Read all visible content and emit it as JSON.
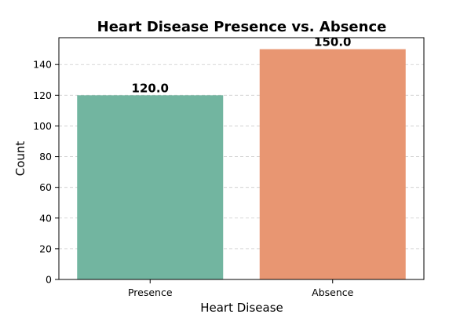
{
  "chart_data": {
    "type": "bar",
    "title": "Heart Disease Presence vs. Absence",
    "xlabel": "Heart Disease",
    "ylabel": "Count",
    "categories": [
      "Presence",
      "Absence"
    ],
    "values": [
      120,
      150
    ],
    "data_labels": [
      "120.0",
      "150.0"
    ],
    "colors": [
      "#72b5a0",
      "#e89672"
    ],
    "ylim": [
      0,
      157.5
    ],
    "yticks": [
      0,
      20,
      40,
      60,
      80,
      100,
      120,
      140
    ],
    "grid": true,
    "legend": "none"
  }
}
